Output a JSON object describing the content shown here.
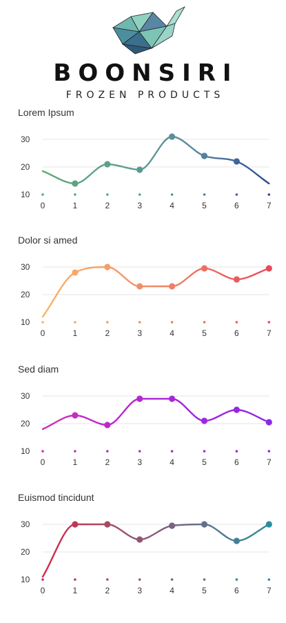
{
  "brand": {
    "name": "BOONSIRI",
    "subtitle": "FROZEN PRODUCTS",
    "logo_icon": "geometric-whale-icon"
  },
  "chart_data": [
    {
      "type": "line",
      "title": "Lorem Ipsum",
      "x": [
        0,
        1,
        2,
        3,
        4,
        5,
        6,
        7
      ],
      "ylim": [
        10,
        30
      ],
      "yticks": [
        10,
        20,
        30
      ],
      "grid": true,
      "smooth": true,
      "series": [
        {
          "values": [
            18.5,
            14,
            21,
            19,
            31,
            24,
            22,
            14
          ]
        }
      ],
      "gradient": [
        "#5aa974",
        "#5e9e8c",
        "#5c88a0",
        "#2d4c8e"
      ],
      "markers_at": [
        1,
        2,
        3,
        4,
        5,
        6
      ]
    },
    {
      "type": "line",
      "title": "Dolor si amed",
      "x": [
        0,
        1,
        2,
        3,
        4,
        5,
        6,
        7
      ],
      "ylim": [
        10,
        30
      ],
      "yticks": [
        10,
        20,
        30
      ],
      "grid": true,
      "smooth": true,
      "series": [
        {
          "values": [
            12,
            28,
            30,
            23,
            23,
            29.5,
            25.5,
            29.5
          ]
        }
      ],
      "gradient": [
        "#f9b36a",
        "#f49a67",
        "#ef7462",
        "#e8485a"
      ],
      "markers_at": [
        1,
        2,
        3,
        4,
        5,
        6,
        7
      ]
    },
    {
      "type": "line",
      "title": "Sed diam",
      "x": [
        0,
        1,
        2,
        3,
        4,
        5,
        6,
        7
      ],
      "ylim": [
        10,
        30
      ],
      "yticks": [
        10,
        20,
        30
      ],
      "grid": true,
      "smooth": true,
      "series": [
        {
          "values": [
            18,
            23,
            19.5,
            29,
            29,
            21,
            25,
            20.5
          ]
        }
      ],
      "gradient": [
        "#d02fb6",
        "#b928cf",
        "#a326de",
        "#8b29e6"
      ],
      "markers_at": [
        1,
        2,
        3,
        4,
        5,
        6,
        7
      ]
    },
    {
      "type": "line",
      "title": "Euismod tincidunt",
      "x": [
        0,
        1,
        2,
        3,
        4,
        5,
        6,
        7
      ],
      "ylim": [
        10,
        30
      ],
      "yticks": [
        10,
        20,
        30
      ],
      "grid": true,
      "smooth": true,
      "series": [
        {
          "values": [
            11,
            30,
            30,
            24.5,
            29.5,
            30,
            24,
            30
          ]
        }
      ],
      "gradient": [
        "#d3254a",
        "#a0506a",
        "#6a6b8a",
        "#2a8d9c"
      ],
      "markers_at": [
        1,
        2,
        3,
        4,
        5,
        6,
        7
      ]
    }
  ]
}
